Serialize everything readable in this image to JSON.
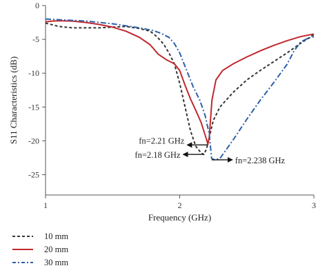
{
  "chart_data": {
    "type": "line",
    "xlabel": "Frequency (GHz)",
    "ylabel": "S11 Characteristics (dB)",
    "xlim": [
      1,
      3
    ],
    "ylim": [
      -28,
      0
    ],
    "xticks": [
      1,
      2,
      3
    ],
    "yticks": [
      0,
      -5,
      -10,
      -15,
      -20,
      -25
    ],
    "grid": false,
    "legend_position": "bottom-left",
    "series": [
      {
        "name": "10 mm",
        "color": "#333333",
        "dash": "dashed",
        "points": [
          [
            1.0,
            -2.6
          ],
          [
            1.1,
            -3.1
          ],
          [
            1.2,
            -3.3
          ],
          [
            1.3,
            -3.3
          ],
          [
            1.4,
            -3.3
          ],
          [
            1.5,
            -3.2
          ],
          [
            1.6,
            -3.1
          ],
          [
            1.7,
            -3.4
          ],
          [
            1.78,
            -3.8
          ],
          [
            1.83,
            -4.6
          ],
          [
            1.88,
            -5.7
          ],
          [
            1.92,
            -7.0
          ],
          [
            1.96,
            -8.6
          ],
          [
            2.0,
            -11.5
          ],
          [
            2.04,
            -15.0
          ],
          [
            2.08,
            -18.5
          ],
          [
            2.12,
            -20.8
          ],
          [
            2.16,
            -21.8
          ],
          [
            2.18,
            -22.0
          ],
          [
            2.2,
            -21.2
          ],
          [
            2.22,
            -19.5
          ],
          [
            2.25,
            -17.0
          ],
          [
            2.3,
            -15.0
          ],
          [
            2.4,
            -12.8
          ],
          [
            2.5,
            -11.0
          ],
          [
            2.6,
            -9.6
          ],
          [
            2.7,
            -8.3
          ],
          [
            2.8,
            -7.0
          ],
          [
            2.9,
            -5.6
          ],
          [
            3.0,
            -4.3
          ]
        ]
      },
      {
        "name": "20 mm",
        "color": "#c0272d",
        "dash": "solid",
        "points": [
          [
            1.0,
            -2.4
          ],
          [
            1.05,
            -2.3
          ],
          [
            1.1,
            -2.25
          ],
          [
            1.2,
            -2.3
          ],
          [
            1.3,
            -2.5
          ],
          [
            1.4,
            -2.8
          ],
          [
            1.5,
            -3.2
          ],
          [
            1.6,
            -3.8
          ],
          [
            1.7,
            -4.7
          ],
          [
            1.78,
            -5.8
          ],
          [
            1.84,
            -7.2
          ],
          [
            1.9,
            -8.0
          ],
          [
            1.96,
            -8.6
          ],
          [
            2.0,
            -9.6
          ],
          [
            2.04,
            -11.8
          ],
          [
            2.08,
            -13.8
          ],
          [
            2.12,
            -15.5
          ],
          [
            2.16,
            -17.3
          ],
          [
            2.2,
            -19.8
          ],
          [
            2.21,
            -20.5
          ],
          [
            2.22,
            -19.5
          ],
          [
            2.24,
            -14.0
          ],
          [
            2.27,
            -11.0
          ],
          [
            2.32,
            -9.6
          ],
          [
            2.4,
            -8.6
          ],
          [
            2.5,
            -7.6
          ],
          [
            2.6,
            -6.7
          ],
          [
            2.7,
            -5.9
          ],
          [
            2.8,
            -5.2
          ],
          [
            2.9,
            -4.6
          ],
          [
            3.0,
            -4.2
          ]
        ]
      },
      {
        "name": "30 mm",
        "color": "#2c5fa8",
        "dash": "dashdot",
        "points": [
          [
            1.0,
            -2.0
          ],
          [
            1.1,
            -2.1
          ],
          [
            1.2,
            -2.2
          ],
          [
            1.3,
            -2.3
          ],
          [
            1.4,
            -2.5
          ],
          [
            1.5,
            -2.7
          ],
          [
            1.6,
            -3.0
          ],
          [
            1.7,
            -3.3
          ],
          [
            1.8,
            -3.7
          ],
          [
            1.86,
            -4.1
          ],
          [
            1.92,
            -4.7
          ],
          [
            1.96,
            -5.6
          ],
          [
            2.0,
            -7.0
          ],
          [
            2.05,
            -9.5
          ],
          [
            2.1,
            -12.0
          ],
          [
            2.15,
            -14.0
          ],
          [
            2.19,
            -16.3
          ],
          [
            2.22,
            -19.0
          ],
          [
            2.238,
            -22.6
          ],
          [
            2.26,
            -22.8
          ],
          [
            2.3,
            -22.6
          ],
          [
            2.4,
            -19.8
          ],
          [
            2.5,
            -16.8
          ],
          [
            2.6,
            -14.0
          ],
          [
            2.7,
            -11.4
          ],
          [
            2.8,
            -8.7
          ],
          [
            2.85,
            -6.8
          ],
          [
            2.9,
            -5.4
          ],
          [
            2.95,
            -4.9
          ],
          [
            3.0,
            -4.6
          ]
        ]
      }
    ],
    "annotations": [
      {
        "text": "fn=2.21 GHz",
        "x": 2.21,
        "y": -20.6,
        "arrow": "left",
        "label_side": "left"
      },
      {
        "text": "fn=2.18 GHz",
        "x": 2.18,
        "y": -22.0,
        "arrow": "left",
        "label_side": "left"
      },
      {
        "text": "fn=2.238 GHz",
        "x": 2.238,
        "y": -22.8,
        "arrow": "right",
        "label_side": "right"
      }
    ]
  }
}
